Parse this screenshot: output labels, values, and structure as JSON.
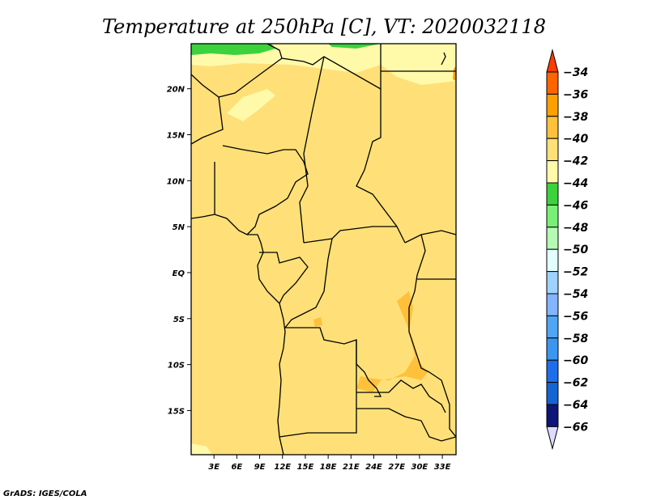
{
  "title": "Temperature at 250hPa [C], VT: 2020032118",
  "credit": "GrADS: IGES/COLA",
  "map": {
    "variable": "Temperature",
    "level": "250hPa",
    "units": "C",
    "valid_time": "2020032118",
    "lat_labels": [
      "20N",
      "15N",
      "10N",
      "5N",
      "EQ",
      "5S",
      "10S",
      "15S"
    ],
    "lat_values": [
      20,
      15,
      10,
      5,
      0,
      -5,
      -10,
      -15
    ],
    "lon_labels": [
      "3E",
      "6E",
      "9E",
      "12E",
      "15E",
      "18E",
      "21E",
      "24E",
      "27E",
      "30E",
      "33E"
    ],
    "lon_values": [
      3,
      6,
      9,
      12,
      15,
      18,
      21,
      24,
      27,
      30,
      33
    ],
    "lon_range": [
      0,
      34.8
    ],
    "lat_range": [
      -19.8,
      24.9
    ]
  },
  "colorbar": {
    "labels": [
      "-34",
      "-36",
      "-38",
      "-40",
      "-42",
      "-44",
      "-46",
      "-48",
      "-50",
      "-52",
      "-54",
      "-56",
      "-58",
      "-60",
      "-62",
      "-64",
      "-66"
    ],
    "colors": [
      "#ff3c00",
      "#ff6400",
      "#ffa000",
      "#ffc03c",
      "#ffe078",
      "#fffaaa",
      "#3cd23c",
      "#78f078",
      "#b4fab4",
      "#e1ffff",
      "#a0d2ff",
      "#82b4ff",
      "#50a5f5",
      "#3c96f0",
      "#1e6eeb",
      "#1464d2",
      "#0f1478",
      "#dcdcff"
    ]
  }
}
